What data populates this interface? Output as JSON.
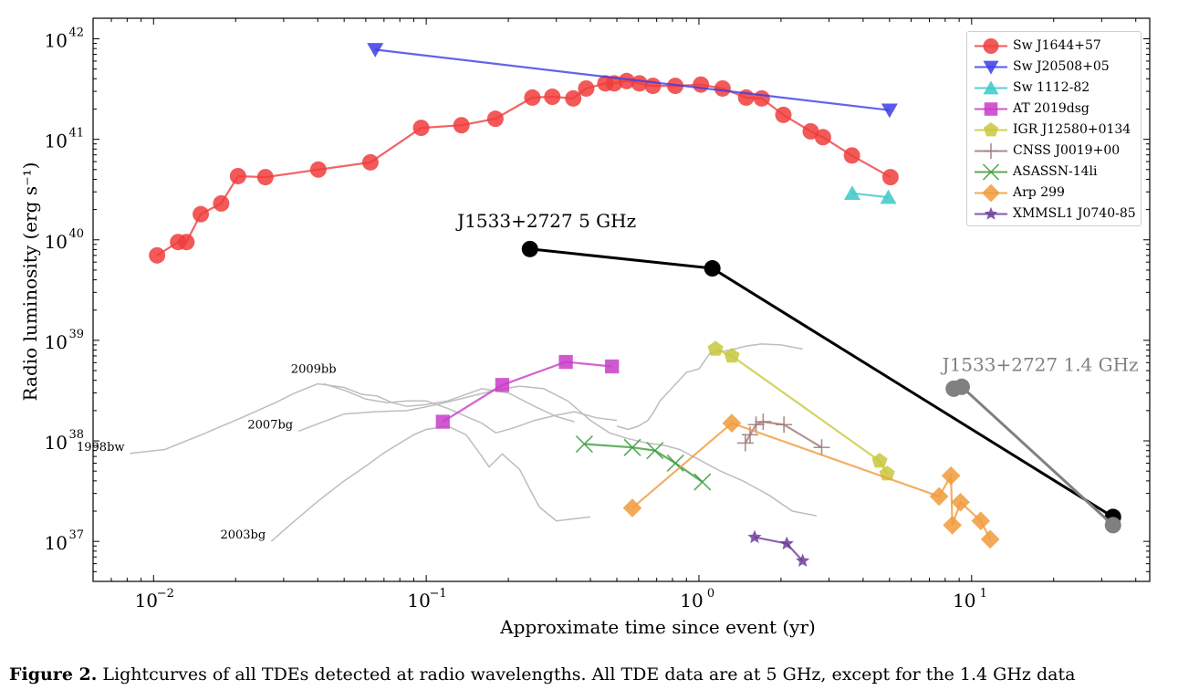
{
  "chart_data": {
    "type": "line",
    "xlabel": "Approximate time since event (yr)",
    "ylabel": "Radio luminosity (erg s⁻¹)",
    "xscale": "log",
    "yscale": "log",
    "xlim": [
      0.006,
      45
    ],
    "ylim": [
      4e+36,
      1.6e+42
    ],
    "xticks": [
      0.01,
      0.1,
      1,
      10
    ],
    "xtick_labels": [
      "10",
      "10",
      "10",
      "10"
    ],
    "xtick_exponents": [
      "−2",
      "−1",
      "0",
      "1"
    ],
    "yticks": [
      1e+37,
      1e+38,
      1e+39,
      1e+40,
      1e+41,
      1e+42
    ],
    "ytick_labels": [
      "10",
      "10",
      "10",
      "10",
      "10",
      "10"
    ],
    "ytick_exponents": [
      "37",
      "38",
      "39",
      "40",
      "41",
      "42"
    ],
    "grid": false,
    "legend_position": "top-right",
    "series": [
      {
        "name": "Sw J1644+57",
        "color": "#f03c3c",
        "marker": "circle",
        "x": [
          0.0103,
          0.0123,
          0.0132,
          0.0149,
          0.0177,
          0.0204,
          0.0257,
          0.0402,
          0.0624,
          0.0958,
          0.1346,
          0.1793,
          0.245,
          0.29,
          0.346,
          0.386,
          0.454,
          0.489,
          0.543,
          0.605,
          0.678,
          0.819,
          1.017,
          1.221,
          1.49,
          1.7,
          2.04,
          2.57,
          2.85,
          3.64,
          5.04
        ],
        "y": [
          7e+39,
          9.5e+39,
          9.5e+39,
          1.8e+40,
          2.3e+40,
          4.3e+40,
          4.2e+40,
          5e+40,
          5.9e+40,
          1.3e+41,
          1.38e+41,
          1.6e+41,
          2.6e+41,
          2.65e+41,
          2.55e+41,
          3.2e+41,
          3.6e+41,
          3.6e+41,
          3.8e+41,
          3.6e+41,
          3.4e+41,
          3.4e+41,
          3.5e+41,
          3.2e+41,
          2.6e+41,
          2.55e+41,
          1.75e+41,
          1.2e+41,
          1.05e+41,
          6.9e+40,
          4.2e+40
        ]
      },
      {
        "name": "Sw J20508+05",
        "color": "#3c3ce6",
        "marker": "triangle-down",
        "x": [
          0.065,
          5.0
        ],
        "y": [
          7.8e+41,
          1.95e+41
        ]
      },
      {
        "name": "Sw 1112-82",
        "color": "#3cc8c8",
        "marker": "triangle-up",
        "x": [
          3.65,
          4.95
        ],
        "y": [
          2.9e+40,
          2.65e+40
        ]
      },
      {
        "name": "AT 2019dsg",
        "color": "#c83cc8",
        "marker": "square",
        "x": [
          0.115,
          0.19,
          0.325,
          0.48
        ],
        "y": [
          1.55e+38,
          3.6e+38,
          6.1e+38,
          5.5e+38
        ]
      },
      {
        "name": "IGR J12580+0134",
        "color": "#c8c83c",
        "marker": "pentagon",
        "x": [
          1.15,
          1.32,
          4.6,
          4.9
        ],
        "y": [
          8.2e+38,
          7e+38,
          6.3e+37,
          4.7e+37
        ]
      },
      {
        "name": "CNSS J0019+00",
        "color": "#a07878",
        "marker": "plus",
        "x": [
          1.48,
          1.54,
          1.62,
          1.72,
          2.05,
          2.82
        ],
        "y": [
          9.5e+37,
          1.15e+38,
          1.45e+38,
          1.55e+38,
          1.45e+38,
          8.6e+37
        ]
      },
      {
        "name": "ASASSN-14li",
        "color": "#3c9b3c",
        "marker": "x",
        "x": [
          0.38,
          0.57,
          0.69,
          0.82,
          1.03
        ],
        "y": [
          9.3e+37,
          8.6e+37,
          8e+37,
          6e+37,
          3.9e+37
        ]
      },
      {
        "name": "Arp 299",
        "color": "#f09b3c",
        "marker": "diamond",
        "x": [
          0.57,
          1.32,
          7.6,
          8.4,
          8.5,
          9.1,
          10.8,
          11.7
        ],
        "y": [
          2.15e+37,
          1.5e+38,
          2.8e+37,
          4.5e+37,
          1.45e+37,
          2.45e+37,
          1.6e+37,
          1.05e+37
        ]
      },
      {
        "name": "XMMSL1 J0740-85",
        "color": "#6e3c9b",
        "marker": "star",
        "x": [
          1.6,
          2.1,
          2.4
        ],
        "y": [
          1.1e+37,
          9.5e+36,
          6.4e+36
        ]
      },
      {
        "name": "J1533+2727 5 GHz",
        "color": "#000000",
        "marker": "circle",
        "x": [
          0.24,
          1.12,
          33.0
        ],
        "y": [
          8.1e+39,
          5.2e+39,
          1.75e+37
        ]
      },
      {
        "name": "J1533+2727 1.4 GHz",
        "color": "#808080",
        "marker": "circle",
        "x": [
          8.6,
          9.2,
          33.0
        ],
        "y": [
          3.3e+38,
          3.45e+38,
          1.45e+37
        ]
      }
    ],
    "background_curves": [
      {
        "label": "1998bw",
        "x": [
          0.0082,
          0.011,
          0.015,
          0.021,
          0.028,
          0.033,
          0.04,
          0.05,
          0.058,
          0.066,
          0.075,
          0.085,
          0.1,
          0.12,
          0.14,
          0.16,
          0.2,
          0.25,
          0.3,
          0.35
        ],
        "y": [
          7.5e+37,
          8.2e+37,
          1.15e+38,
          1.7e+38,
          2.4e+38,
          3e+38,
          3.7e+38,
          3.4e+38,
          2.9e+38,
          2.8e+38,
          2.4e+38,
          2.2e+38,
          2.3e+38,
          2.5e+38,
          2.9e+38,
          3.3e+38,
          3e+38,
          2.2e+38,
          1.75e+38,
          1.55e+38
        ]
      },
      {
        "label": "2009bb",
        "x": [
          0.042,
          0.05,
          0.06,
          0.072,
          0.085,
          0.1,
          0.12,
          0.14,
          0.16,
          0.18,
          0.21,
          0.25,
          0.3,
          0.35,
          0.42,
          0.5
        ],
        "y": [
          3.7e+38,
          3.2e+38,
          2.6e+38,
          2.4e+38,
          2.5e+38,
          2.5e+38,
          2.1e+38,
          1.75e+38,
          1.5e+38,
          1.2e+38,
          1.35e+38,
          1.6e+38,
          1.8e+38,
          1.95e+38,
          1.7e+38,
          1.6e+38
        ]
      },
      {
        "label": "2007bg",
        "x": [
          0.034,
          0.042,
          0.05,
          0.065,
          0.085,
          0.11,
          0.14,
          0.18,
          0.22,
          0.27,
          0.33,
          0.4,
          0.47,
          0.55,
          0.65,
          0.75,
          0.85,
          1.0,
          1.2,
          1.45,
          1.8,
          2.2,
          2.7
        ],
        "y": [
          1.25e+38,
          1.55e+38,
          1.85e+38,
          1.95e+38,
          2e+38,
          2.3e+38,
          2.7e+38,
          3.2e+38,
          3.5e+38,
          3.3e+38,
          2.5e+38,
          1.6e+38,
          1.2e+38,
          1.05e+38,
          9.5e+37,
          9e+37,
          8.2e+37,
          6.5e+37,
          5e+37,
          4e+37,
          2.9e+37,
          2e+37,
          1.8e+37
        ]
      },
      {
        "label": "2003bg",
        "x": [
          0.027,
          0.032,
          0.04,
          0.05,
          0.06,
          0.07,
          0.08,
          0.09,
          0.1,
          0.12,
          0.14,
          0.16,
          0.17,
          0.19,
          0.22,
          0.24,
          0.26,
          0.3,
          0.4
        ],
        "y": [
          1e+37,
          1.5e+37,
          2.5e+37,
          4e+37,
          5.6e+37,
          7.6e+37,
          9.5e+37,
          1.15e+38,
          1.3e+38,
          1.4e+38,
          1.15e+38,
          7e+37,
          5.5e+37,
          7.4e+37,
          5.2e+37,
          3.3e+37,
          2.2e+37,
          1.6e+37,
          1.75e+37
        ]
      },
      {
        "label": "",
        "x": [
          0.5,
          0.55,
          0.6,
          0.65,
          0.68,
          0.72,
          0.8,
          0.9,
          1.0,
          1.1,
          1.3,
          1.5,
          1.7,
          2.0,
          2.4
        ],
        "y": [
          1.4e+38,
          1.3e+38,
          1.4e+38,
          1.6e+38,
          1.9e+38,
          2.5e+38,
          3.4e+38,
          4.8e+38,
          5.2e+38,
          7.5e+38,
          8e+38,
          8.8e+38,
          9.2e+38,
          9e+38,
          8.2e+38
        ]
      }
    ],
    "annotations": [
      {
        "text": "J1533+2727 5 GHz",
        "x": 0.13,
        "y": 1.33e+40
      },
      {
        "text": "J1533+2727 1.4 GHz",
        "x": 7.8,
        "y": 4.95e+38
      }
    ]
  },
  "caption": {
    "label": "Figure 2.",
    "text": "Lightcurves of all TDEs detected at radio wavelengths. All TDE data are at 5 GHz, except for the 1.4 GHz data"
  }
}
